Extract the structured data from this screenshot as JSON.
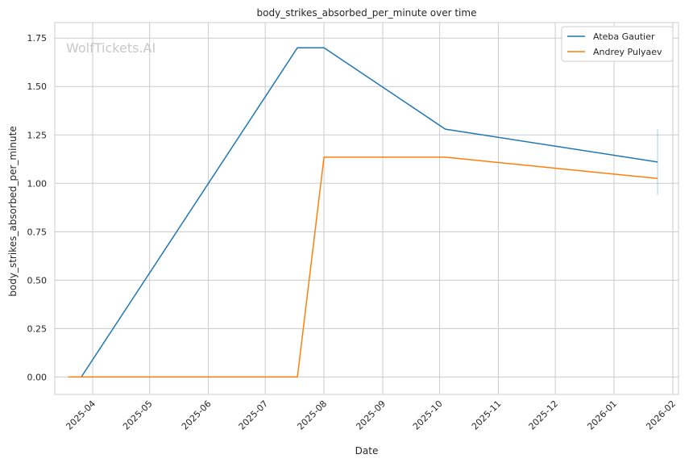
{
  "chart_data": {
    "type": "line",
    "title": "body_strikes_absorbed_per_minute over time",
    "xlabel": "Date",
    "ylabel": "body_strikes_absorbed_per_minute",
    "watermark": "WolfTickets.AI",
    "x_ticks": [
      "2025-04",
      "2025-05",
      "2025-06",
      "2025-07",
      "2025-08",
      "2025-09",
      "2025-10",
      "2025-11",
      "2025-12",
      "2026-01",
      "2026-02"
    ],
    "y_ticks": [
      "0.00",
      "0.25",
      "0.50",
      "0.75",
      "1.00",
      "1.25",
      "1.50",
      "1.75"
    ],
    "xlim": [
      "2025-03-12",
      "2026-02-04"
    ],
    "ylim": [
      -0.09,
      1.83
    ],
    "grid": true,
    "legend_position": "top-right",
    "series": [
      {
        "name": "Ateba Gautier",
        "color": "#1f77b4",
        "points": [
          {
            "x": "2025-03-26",
            "y": 0.0
          },
          {
            "x": "2025-07-18",
            "y": 1.7
          },
          {
            "x": "2025-08-01",
            "y": 1.7
          },
          {
            "x": "2025-10-04",
            "y": 1.28
          },
          {
            "x": "2026-01-24",
            "y": 1.11
          }
        ],
        "error_bar": {
          "x": "2026-01-24",
          "low": 0.94,
          "high": 1.28
        }
      },
      {
        "name": "Andrey Pulyaev",
        "color": "#ff7f0e",
        "points": [
          {
            "x": "2025-03-19",
            "y": 0.0
          },
          {
            "x": "2025-07-18",
            "y": 0.0
          },
          {
            "x": "2025-08-01",
            "y": 1.135
          },
          {
            "x": "2025-10-04",
            "y": 1.135
          },
          {
            "x": "2026-01-24",
            "y": 1.025
          }
        ]
      }
    ]
  }
}
